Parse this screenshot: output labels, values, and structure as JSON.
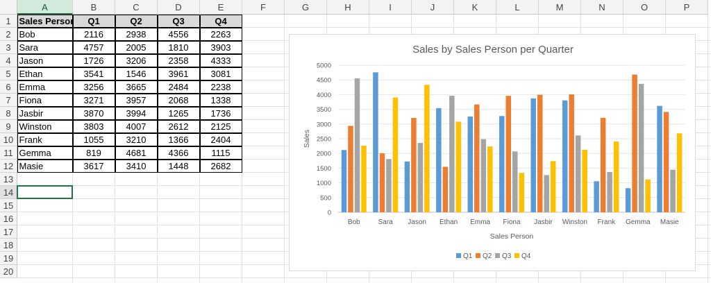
{
  "sheet": {
    "columns": [
      "A",
      "B",
      "C",
      "D",
      "E",
      "F",
      "G",
      "H",
      "I",
      "J",
      "K",
      "L",
      "M",
      "N",
      "O",
      "P"
    ],
    "rows": [
      "1",
      "2",
      "3",
      "4",
      "5",
      "6",
      "7",
      "8",
      "9",
      "10",
      "11",
      "12",
      "13",
      "14",
      "15",
      "16",
      "17",
      "18",
      "19",
      "20"
    ],
    "table": {
      "headers": [
        "Sales Person",
        "Q1",
        "Q2",
        "Q3",
        "Q4"
      ],
      "rows": [
        [
          "Bob",
          "2116",
          "2938",
          "4556",
          "2263"
        ],
        [
          "Sara",
          "4757",
          "2005",
          "1810",
          "3903"
        ],
        [
          "Jason",
          "1726",
          "3206",
          "2358",
          "4333"
        ],
        [
          "Ethan",
          "3541",
          "1546",
          "3961",
          "3081"
        ],
        [
          "Emma",
          "3256",
          "3665",
          "2484",
          "2238"
        ],
        [
          "Fiona",
          "3271",
          "3957",
          "2068",
          "1338"
        ],
        [
          "Jasbir",
          "3870",
          "3994",
          "1265",
          "1736"
        ],
        [
          "Winston",
          "3803",
          "4007",
          "2612",
          "2125"
        ],
        [
          "Frank",
          "1055",
          "3210",
          "1366",
          "2404"
        ],
        [
          "Gemma",
          "819",
          "4681",
          "4366",
          "1115"
        ],
        [
          "Masie",
          "3617",
          "3410",
          "1448",
          "2682"
        ]
      ]
    }
  },
  "chart_data": {
    "type": "bar",
    "title": "Sales by Sales Person per Quarter",
    "xlabel": "Sales Person",
    "ylabel": "Sales",
    "categories": [
      "Bob",
      "Sara",
      "Jason",
      "Ethan",
      "Emma",
      "Fiona",
      "Jasbir",
      "Winston",
      "Frank",
      "Gemma",
      "Masie"
    ],
    "series": [
      {
        "name": "Q1",
        "color": "#5b9bd5",
        "values": [
          2116,
          4757,
          1726,
          3541,
          3256,
          3271,
          3870,
          3803,
          1055,
          819,
          3617
        ]
      },
      {
        "name": "Q2",
        "color": "#ed7d31",
        "values": [
          2938,
          2005,
          3206,
          1546,
          3665,
          3957,
          3994,
          4007,
          3210,
          4681,
          3410
        ]
      },
      {
        "name": "Q3",
        "color": "#a5a5a5",
        "values": [
          4556,
          1810,
          2358,
          3961,
          2484,
          2068,
          1265,
          2612,
          1366,
          4366,
          1448
        ]
      },
      {
        "name": "Q4",
        "color": "#ffc000",
        "values": [
          2263,
          3903,
          4333,
          3081,
          2238,
          1338,
          1736,
          2125,
          2404,
          1115,
          2682
        ]
      }
    ],
    "ylim": [
      0,
      5000
    ],
    "yticks": [
      0,
      500,
      1000,
      1500,
      2000,
      2500,
      3000,
      3500,
      4000,
      4500,
      5000
    ],
    "grid": true,
    "legend": "bottom"
  }
}
